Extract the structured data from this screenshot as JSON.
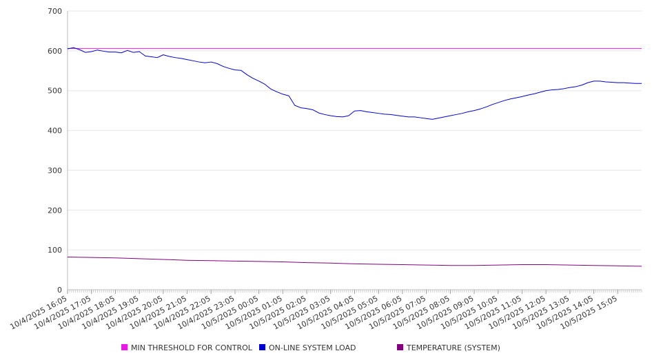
{
  "chart_data": {
    "type": "line",
    "title": "",
    "xlabel": "",
    "ylabel": "",
    "ylim": [
      0,
      700
    ],
    "yticks": [
      0,
      100,
      200,
      300,
      400,
      500,
      600,
      700
    ],
    "grid": true,
    "legend_position": "bottom",
    "x_start": "10/4/2025 16:05",
    "x_end": "10/5/2025 16:05",
    "x_tick_labels": [
      "10/4/2025 16:05",
      "10/4/2025 17:05",
      "10/4/2025 18:05",
      "10/4/2025 19:05",
      "10/4/2025 20:05",
      "10/4/2025 21:05",
      "10/4/2025 22:05",
      "10/4/2025 23:05",
      "10/5/2025 00:05",
      "10/5/2025 01:05",
      "10/5/2025 02:05",
      "10/5/2025 03:05",
      "10/5/2025 04:05",
      "10/5/2025 05:05",
      "10/5/2025 06:05",
      "10/5/2025 07:05",
      "10/5/2025 08:05",
      "10/5/2025 09:05",
      "10/5/2025 10:05",
      "10/5/2025 11:05",
      "10/5/2025 12:05",
      "10/5/2025 13:05",
      "10/5/2025 14:05",
      "10/5/2025 15:05"
    ],
    "series": [
      {
        "name": "MIN THRESHOLD FOR CONTROL",
        "color": "#e619e6",
        "x": [
          "10/4/2025 16:05",
          "10/5/2025 16:05"
        ],
        "y": [
          606,
          606
        ]
      },
      {
        "name": "ON-LINE SYSTEM LOAD",
        "color": "#0000cc",
        "x": [
          "10/4/2025 16:05",
          "10/4/2025 16:20",
          "10/4/2025 16:35",
          "10/4/2025 16:50",
          "10/4/2025 17:05",
          "10/4/2025 17:20",
          "10/4/2025 17:35",
          "10/4/2025 17:50",
          "10/4/2025 18:05",
          "10/4/2025 18:20",
          "10/4/2025 18:35",
          "10/4/2025 18:50",
          "10/4/2025 19:05",
          "10/4/2025 19:20",
          "10/4/2025 19:35",
          "10/4/2025 19:50",
          "10/4/2025 20:05",
          "10/4/2025 20:20",
          "10/4/2025 20:35",
          "10/4/2025 20:50",
          "10/4/2025 21:05",
          "10/4/2025 21:20",
          "10/4/2025 21:35",
          "10/4/2025 21:50",
          "10/4/2025 22:05",
          "10/4/2025 22:20",
          "10/4/2025 22:35",
          "10/4/2025 22:50",
          "10/4/2025 23:05",
          "10/4/2025 23:20",
          "10/4/2025 23:35",
          "10/4/2025 23:50",
          "10/5/2025 00:05",
          "10/5/2025 00:20",
          "10/5/2025 00:35",
          "10/5/2025 00:50",
          "10/5/2025 01:05",
          "10/5/2025 01:20",
          "10/5/2025 01:35",
          "10/5/2025 01:50",
          "10/5/2025 02:05",
          "10/5/2025 02:20",
          "10/5/2025 02:35",
          "10/5/2025 02:50",
          "10/5/2025 03:05",
          "10/5/2025 03:20",
          "10/5/2025 03:35",
          "10/5/2025 03:50",
          "10/5/2025 04:05",
          "10/5/2025 04:20",
          "10/5/2025 04:35",
          "10/5/2025 04:50",
          "10/5/2025 05:05",
          "10/5/2025 05:20",
          "10/5/2025 05:35",
          "10/5/2025 05:50",
          "10/5/2025 06:05",
          "10/5/2025 06:20",
          "10/5/2025 06:35",
          "10/5/2025 06:50",
          "10/5/2025 07:05",
          "10/5/2025 07:20",
          "10/5/2025 07:35",
          "10/5/2025 07:50",
          "10/5/2025 08:05",
          "10/5/2025 08:20",
          "10/5/2025 08:35",
          "10/5/2025 08:50",
          "10/5/2025 09:05",
          "10/5/2025 09:20",
          "10/5/2025 09:35",
          "10/5/2025 09:50",
          "10/5/2025 10:05",
          "10/5/2025 10:20",
          "10/5/2025 10:35",
          "10/5/2025 10:50",
          "10/5/2025 11:05",
          "10/5/2025 11:20",
          "10/5/2025 11:35",
          "10/5/2025 11:50",
          "10/5/2025 12:05",
          "10/5/2025 12:20",
          "10/5/2025 12:35",
          "10/5/2025 12:50",
          "10/5/2025 13:05",
          "10/5/2025 13:20",
          "10/5/2025 13:35",
          "10/5/2025 13:50",
          "10/5/2025 14:05",
          "10/5/2025 14:20",
          "10/5/2025 14:35",
          "10/5/2025 14:50",
          "10/5/2025 15:05",
          "10/5/2025 15:20",
          "10/5/2025 15:35",
          "10/5/2025 15:50",
          "10/5/2025 16:05"
        ],
        "y": [
          605,
          608,
          603,
          596,
          598,
          602,
          599,
          597,
          597,
          595,
          601,
          596,
          598,
          587,
          585,
          583,
          590,
          586,
          583,
          581,
          578,
          575,
          572,
          570,
          572,
          568,
          561,
          556,
          552,
          551,
          540,
          531,
          524,
          516,
          504,
          497,
          491,
          487,
          463,
          457,
          455,
          452,
          444,
          440,
          437,
          435,
          434,
          437,
          449,
          450,
          447,
          445,
          443,
          441,
          440,
          438,
          436,
          434,
          434,
          432,
          430,
          428,
          431,
          434,
          437,
          440,
          443,
          447,
          450,
          454,
          459,
          465,
          470,
          475,
          479,
          482,
          485,
          489,
          492,
          496,
          500,
          502,
          503,
          505,
          508,
          510,
          514,
          520,
          524,
          524,
          522,
          521,
          520,
          520,
          519,
          518,
          518
        ]
      },
      {
        "name": "TEMPERATURE (SYSTEM)",
        "color": "#800080",
        "x": [
          "10/4/2025 16:05",
          "10/4/2025 17:05",
          "10/4/2025 18:05",
          "10/4/2025 19:05",
          "10/4/2025 20:05",
          "10/4/2025 21:05",
          "10/4/2025 22:05",
          "10/4/2025 23:05",
          "10/5/2025 00:05",
          "10/5/2025 01:05",
          "10/5/2025 02:05",
          "10/5/2025 03:05",
          "10/5/2025 04:05",
          "10/5/2025 05:05",
          "10/5/2025 06:05",
          "10/5/2025 07:05",
          "10/5/2025 08:05",
          "10/5/2025 09:05",
          "10/5/2025 10:05",
          "10/5/2025 11:05",
          "10/5/2025 12:05",
          "10/5/2025 13:05",
          "10/5/2025 14:05",
          "10/5/2025 15:05",
          "10/5/2025 16:05"
        ],
        "y": [
          82,
          81,
          80,
          78,
          76,
          74,
          73,
          72,
          71,
          70,
          68,
          67,
          65,
          64,
          63,
          62,
          61,
          61,
          62,
          63,
          63,
          62,
          61,
          60,
          59
        ]
      }
    ]
  }
}
